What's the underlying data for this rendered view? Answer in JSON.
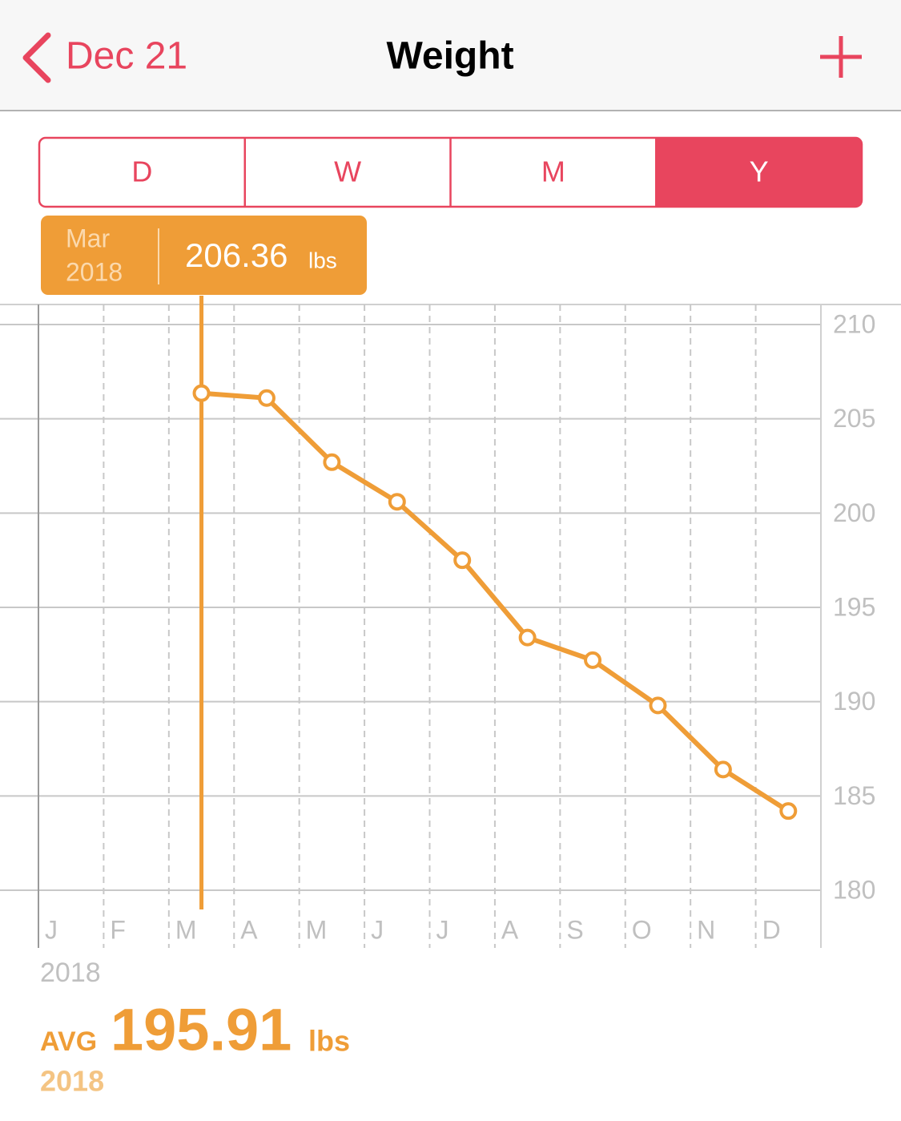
{
  "nav": {
    "back": "Dec 21",
    "title": "Weight"
  },
  "segments": {
    "items": [
      "D",
      "W",
      "M",
      "Y"
    ],
    "selected": 3
  },
  "tooltip": {
    "month": "Mar",
    "year": "2018",
    "unit": "lbs",
    "index": 2
  },
  "chart_data": {
    "type": "line",
    "categories": [
      "J",
      "F",
      "M",
      "A",
      "M",
      "J",
      "J",
      "A",
      "S",
      "O",
      "N",
      "D"
    ],
    "values": [
      null,
      null,
      206.36,
      206.1,
      202.7,
      200.6,
      197.5,
      193.4,
      192.2,
      189.8,
      186.4,
      184.2
    ],
    "color": "#ef9d37",
    "xlabel": "2018",
    "ylim": [
      180,
      210
    ],
    "yticks": [
      180,
      185,
      190,
      195,
      200,
      205,
      210
    ],
    "grid": true
  },
  "summary": {
    "label": "AVG",
    "value": "195.91",
    "unit": "lbs",
    "period": "2018"
  }
}
